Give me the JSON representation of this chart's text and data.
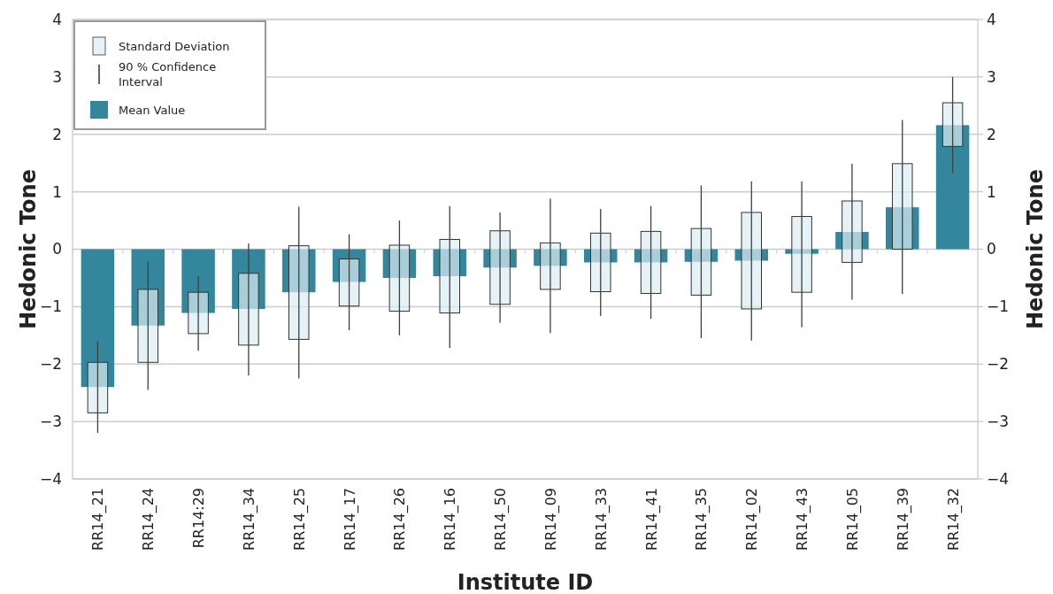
{
  "chart_data": {
    "type": "bar",
    "xlabel": "Institute ID",
    "ylabel": "Hedonic Tone",
    "y2label": "Hedonic Tone",
    "categories": [
      "RR14_21",
      "RR14_24",
      "RR14:29",
      "RR14_34",
      "RR14_25",
      "RR14_17",
      "RR14_26",
      "RR14_16",
      "RR14_50",
      "RR14_09",
      "RR14_33",
      "RR14_41",
      "RR14_35",
      "RR14_02",
      "RR14_43",
      "RR14_05",
      "RR14_39",
      "RR14_32"
    ],
    "series": [
      {
        "name": "Mean Value",
        "color": "#33869c",
        "values": [
          -2.4,
          -1.33,
          -1.11,
          -1.04,
          -0.75,
          -0.57,
          -0.5,
          -0.47,
          -0.32,
          -0.29,
          -0.23,
          -0.23,
          -0.22,
          -0.2,
          -0.08,
          0.3,
          0.73,
          2.16
        ]
      },
      {
        "name": "Standard Deviation",
        "color": "#daeef3",
        "base": [
          -2.85,
          -1.97,
          -1.47,
          -1.67,
          -1.57,
          -0.99,
          -1.08,
          -1.11,
          -0.96,
          -0.7,
          -0.74,
          -0.77,
          -0.8,
          -1.04,
          -0.75,
          -0.23,
          0,
          1.79
        ],
        "values": [
          0.88,
          1.27,
          0.72,
          1.25,
          1.63,
          0.82,
          1.15,
          1.28,
          1.28,
          0.81,
          1.02,
          1.08,
          1.16,
          1.68,
          1.32,
          1.07,
          1.49,
          0.76
        ]
      },
      {
        "name": "90 % Confidence Interval",
        "color": "#404040",
        "base": [
          -3.2,
          -2.45,
          -1.77,
          -2.2,
          -2.25,
          -1.41,
          -1.5,
          -1.72,
          -1.28,
          -1.46,
          -1.16,
          -1.21,
          -1.55,
          -1.59,
          -1.36,
          -0.88,
          -0.78,
          1.33
        ],
        "values": [
          1.6,
          2.23,
          1.3,
          2.3,
          2.99,
          1.67,
          2.0,
          2.47,
          1.92,
          2.34,
          1.86,
          1.96,
          2.66,
          2.77,
          2.54,
          2.37,
          3.03,
          1.67
        ]
      }
    ],
    "ylim": [
      -4,
      4
    ],
    "yticks": [
      {
        "value": -4,
        "label": "−4"
      },
      {
        "value": -3,
        "label": "−3"
      },
      {
        "value": -2,
        "label": "−2"
      },
      {
        "value": -1,
        "label": "−1"
      },
      0,
      1,
      2,
      3,
      4
    ],
    "y2lim": [
      -4,
      4
    ],
    "y2ticks": [
      {
        "value": -4,
        "label": "−4"
      },
      {
        "value": -3,
        "label": "−3"
      },
      {
        "value": -2,
        "label": "−2"
      },
      {
        "value": -1,
        "label": "−1"
      },
      0,
      1,
      2,
      3,
      4
    ],
    "grid": "y",
    "legend": "top left"
  }
}
